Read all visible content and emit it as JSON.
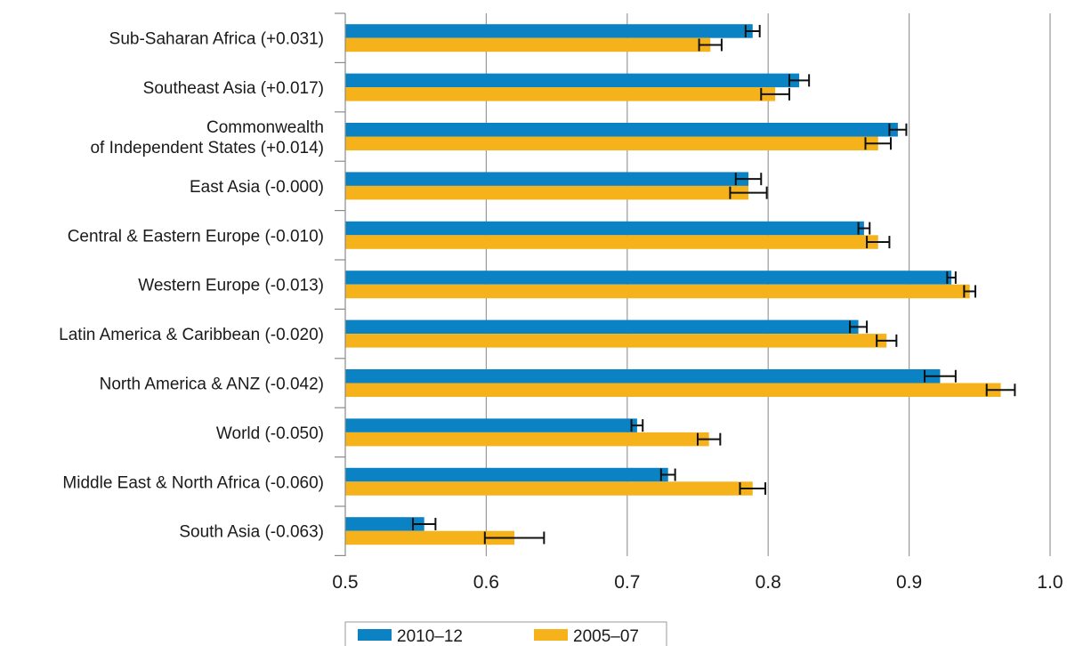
{
  "chart_data": {
    "type": "bar",
    "orientation": "horizontal",
    "categories": [
      [
        "Sub-Saharan Africa (+0.031)"
      ],
      [
        "Southeast Asia (+0.017)"
      ],
      [
        "Commonwealth",
        "of Independent States (+0.014)"
      ],
      [
        "East Asia (-0.000)"
      ],
      [
        "Central & Eastern Europe (-0.010)"
      ],
      [
        "Western Europe (-0.013)"
      ],
      [
        "Latin America & Caribbean (-0.020)"
      ],
      [
        "North America & ANZ (-0.042)"
      ],
      [
        "World (-0.050)"
      ],
      [
        "Middle East & North Africa (-0.060)"
      ],
      [
        "South Asia (-0.063)"
      ]
    ],
    "series": [
      {
        "name": "2010–12",
        "color": "#0b82c4",
        "values": [
          0.789,
          0.822,
          0.892,
          0.786,
          0.868,
          0.93,
          0.864,
          0.922,
          0.707,
          0.729,
          0.556
        ],
        "error": [
          0.005,
          0.007,
          0.006,
          0.009,
          0.004,
          0.003,
          0.006,
          0.011,
          0.004,
          0.005,
          0.008
        ]
      },
      {
        "name": "2005–07",
        "color": "#f5b21a",
        "values": [
          0.759,
          0.805,
          0.878,
          0.786,
          0.878,
          0.943,
          0.884,
          0.965,
          0.758,
          0.789,
          0.62
        ],
        "error": [
          0.008,
          0.01,
          0.009,
          0.013,
          0.008,
          0.004,
          0.007,
          0.01,
          0.008,
          0.009,
          0.021
        ]
      }
    ],
    "xlim": [
      0.5,
      1.0
    ],
    "xticks": [
      "0.5",
      "0.6",
      "0.7",
      "0.8",
      "0.9",
      "1.0"
    ],
    "xtick_values": [
      0.5,
      0.6,
      0.7,
      0.8,
      0.9,
      1.0
    ],
    "grid": true,
    "legend": "bottom-center",
    "title": "",
    "xlabel": "",
    "ylabel": ""
  }
}
